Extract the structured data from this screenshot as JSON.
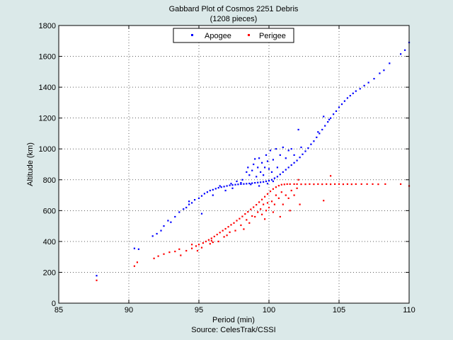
{
  "chart_data": {
    "type": "scatter",
    "title": "Gabbard Plot of Cosmos 2251 Debris",
    "subtitle": "(1208 pieces)",
    "xlabel": "Period (min)",
    "source": "Source: CelesTrak/CSSI",
    "ylabel": "Altitude (km)",
    "xlim": [
      85,
      110
    ],
    "ylim": [
      0,
      1800
    ],
    "xticks": [
      85,
      90,
      95,
      100,
      105,
      110
    ],
    "yticks": [
      0,
      200,
      400,
      600,
      800,
      1000,
      1200,
      1400,
      1600,
      1800
    ],
    "grid": true,
    "legend_position": "top-center",
    "series": [
      {
        "name": "Apogee",
        "color": "#0000ff",
        "points": [
          [
            87.7,
            178
          ],
          [
            90.4,
            355
          ],
          [
            90.7,
            350
          ],
          [
            91.7,
            435
          ],
          [
            92.0,
            450
          ],
          [
            92.3,
            470
          ],
          [
            92.5,
            500
          ],
          [
            92.8,
            535
          ],
          [
            93.0,
            525
          ],
          [
            93.3,
            560
          ],
          [
            93.6,
            590
          ],
          [
            93.9,
            610
          ],
          [
            94.1,
            620
          ],
          [
            94.3,
            640
          ],
          [
            94.5,
            650
          ],
          [
            94.3,
            660
          ],
          [
            94.7,
            670
          ],
          [
            95.0,
            680
          ],
          [
            95.2,
            695
          ],
          [
            95.4,
            710
          ],
          [
            95.6,
            720
          ],
          [
            95.8,
            730
          ],
          [
            96.0,
            735
          ],
          [
            96.2,
            742
          ],
          [
            96.4,
            748
          ],
          [
            96.6,
            752
          ],
          [
            96.8,
            756
          ],
          [
            97.0,
            760
          ],
          [
            97.2,
            764
          ],
          [
            97.4,
            766
          ],
          [
            97.6,
            768
          ],
          [
            97.8,
            770
          ],
          [
            98.0,
            772
          ],
          [
            98.2,
            773
          ],
          [
            98.4,
            774
          ],
          [
            98.6,
            776
          ],
          [
            98.8,
            778
          ],
          [
            99.0,
            780
          ],
          [
            99.2,
            782
          ],
          [
            99.4,
            784
          ],
          [
            99.6,
            786
          ],
          [
            99.8,
            790
          ],
          [
            100.0,
            795
          ],
          [
            100.2,
            800
          ],
          [
            100.4,
            810
          ],
          [
            100.6,
            820
          ],
          [
            100.8,
            835
          ],
          [
            101.0,
            850
          ],
          [
            101.2,
            865
          ],
          [
            101.4,
            880
          ],
          [
            101.6,
            895
          ],
          [
            101.8,
            910
          ],
          [
            102.0,
            925
          ],
          [
            102.2,
            945
          ],
          [
            102.4,
            965
          ],
          [
            102.6,
            985
          ],
          [
            102.8,
            1005
          ],
          [
            103.0,
            1030
          ],
          [
            103.2,
            1050
          ],
          [
            103.4,
            1075
          ],
          [
            103.6,
            1100
          ],
          [
            103.8,
            1125
          ],
          [
            104.0,
            1150
          ],
          [
            104.2,
            1175
          ],
          [
            104.4,
            1200
          ],
          [
            104.6,
            1225
          ],
          [
            104.8,
            1245
          ],
          [
            105.0,
            1270
          ],
          [
            105.2,
            1290
          ],
          [
            105.4,
            1310
          ],
          [
            105.6,
            1330
          ],
          [
            105.8,
            1345
          ],
          [
            106.0,
            1360
          ],
          [
            106.2,
            1375
          ],
          [
            106.5,
            1390
          ],
          [
            106.8,
            1410
          ],
          [
            107.1,
            1430
          ],
          [
            107.5,
            1455
          ],
          [
            107.9,
            1490
          ],
          [
            108.2,
            1510
          ],
          [
            108.6,
            1555
          ],
          [
            109.4,
            1615
          ],
          [
            109.7,
            1640
          ],
          [
            110.0,
            1690
          ],
          [
            95.2,
            580
          ],
          [
            96.0,
            700
          ],
          [
            96.9,
            730
          ],
          [
            97.4,
            745
          ],
          [
            97.7,
            790
          ],
          [
            98.1,
            800
          ],
          [
            98.4,
            850
          ],
          [
            98.5,
            880
          ],
          [
            98.6,
            830
          ],
          [
            98.8,
            860
          ],
          [
            98.9,
            900
          ],
          [
            99.0,
            935
          ],
          [
            99.1,
            820
          ],
          [
            99.2,
            880
          ],
          [
            99.3,
            940
          ],
          [
            99.4,
            850
          ],
          [
            99.5,
            910
          ],
          [
            99.6,
            830
          ],
          [
            99.7,
            880
          ],
          [
            99.8,
            960
          ],
          [
            99.9,
            920
          ],
          [
            100.0,
            870
          ],
          [
            100.1,
            990
          ],
          [
            100.2,
            850
          ],
          [
            100.3,
            930
          ],
          [
            100.5,
            1000
          ],
          [
            100.6,
            880
          ],
          [
            100.8,
            960
          ],
          [
            101.0,
            1010
          ],
          [
            101.2,
            940
          ],
          [
            101.4,
            990
          ],
          [
            101.6,
            1000
          ],
          [
            101.8,
            960
          ],
          [
            102.1,
            1125
          ],
          [
            103.9,
            1210
          ],
          [
            104.3,
            1190
          ],
          [
            103.5,
            1110
          ],
          [
            102.3,
            1010
          ],
          [
            99.3,
            760
          ],
          [
            99.9,
            775
          ],
          [
            100.3,
            790
          ],
          [
            98.7,
            770
          ],
          [
            98.0,
            780
          ],
          [
            97.3,
            775
          ],
          [
            96.5,
            760
          ]
        ]
      },
      {
        "name": "Perigee",
        "color": "#ff0000",
        "points": [
          [
            87.7,
            148
          ],
          [
            90.4,
            240
          ],
          [
            90.6,
            265
          ],
          [
            91.8,
            290
          ],
          [
            92.1,
            305
          ],
          [
            92.5,
            318
          ],
          [
            92.9,
            330
          ],
          [
            93.3,
            335
          ],
          [
            93.7,
            310
          ],
          [
            94.1,
            340
          ],
          [
            94.5,
            355
          ],
          [
            94.8,
            370
          ],
          [
            95.0,
            380
          ],
          [
            95.3,
            390
          ],
          [
            95.5,
            400
          ],
          [
            95.7,
            410
          ],
          [
            95.9,
            420
          ],
          [
            96.1,
            432
          ],
          [
            96.3,
            445
          ],
          [
            96.5,
            458
          ],
          [
            96.7,
            470
          ],
          [
            96.9,
            482
          ],
          [
            97.1,
            495
          ],
          [
            97.3,
            508
          ],
          [
            97.5,
            520
          ],
          [
            97.7,
            535
          ],
          [
            97.9,
            548
          ],
          [
            98.1,
            562
          ],
          [
            98.3,
            578
          ],
          [
            98.5,
            592
          ],
          [
            98.7,
            608
          ],
          [
            98.9,
            622
          ],
          [
            99.1,
            638
          ],
          [
            99.3,
            655
          ],
          [
            99.5,
            672
          ],
          [
            99.7,
            690
          ],
          [
            99.9,
            708
          ],
          [
            100.1,
            725
          ],
          [
            100.3,
            740
          ],
          [
            100.5,
            752
          ],
          [
            100.7,
            762
          ],
          [
            100.9,
            768
          ],
          [
            101.1,
            770
          ],
          [
            101.3,
            772
          ],
          [
            101.5,
            772
          ],
          [
            101.8,
            772
          ],
          [
            102.0,
            772
          ],
          [
            102.3,
            771
          ],
          [
            102.6,
            771
          ],
          [
            102.9,
            772
          ],
          [
            103.2,
            771
          ],
          [
            103.5,
            772
          ],
          [
            103.8,
            771
          ],
          [
            104.1,
            772
          ],
          [
            104.4,
            771
          ],
          [
            104.7,
            772
          ],
          [
            105.0,
            772
          ],
          [
            105.3,
            771
          ],
          [
            105.6,
            772
          ],
          [
            105.9,
            771
          ],
          [
            106.2,
            772
          ],
          [
            106.6,
            772
          ],
          [
            107.0,
            772
          ],
          [
            107.4,
            772
          ],
          [
            107.8,
            771
          ],
          [
            108.3,
            772
          ],
          [
            109.4,
            772
          ],
          [
            110.0,
            760
          ],
          [
            94.5,
            380
          ],
          [
            95.2,
            360
          ],
          [
            96.0,
            395
          ],
          [
            96.8,
            430
          ],
          [
            97.2,
            460
          ],
          [
            97.6,
            470
          ],
          [
            98.0,
            505
          ],
          [
            98.4,
            540
          ],
          [
            98.6,
            520
          ],
          [
            98.8,
            565
          ],
          [
            99.0,
            560
          ],
          [
            99.2,
            590
          ],
          [
            99.4,
            610
          ],
          [
            99.5,
            575
          ],
          [
            99.6,
            640
          ],
          [
            99.8,
            600
          ],
          [
            99.9,
            650
          ],
          [
            100.0,
            620
          ],
          [
            100.2,
            660
          ],
          [
            100.4,
            640
          ],
          [
            100.5,
            700
          ],
          [
            100.7,
            680
          ],
          [
            100.9,
            720
          ],
          [
            101.0,
            640
          ],
          [
            101.2,
            700
          ],
          [
            101.4,
            680
          ],
          [
            101.6,
            730
          ],
          [
            101.8,
            700
          ],
          [
            102.0,
            745
          ],
          [
            102.1,
            800
          ],
          [
            104.4,
            825
          ],
          [
            103.9,
            665
          ],
          [
            102.2,
            640
          ],
          [
            101.5,
            600
          ],
          [
            100.8,
            560
          ],
          [
            100.3,
            590
          ],
          [
            99.7,
            545
          ],
          [
            98.2,
            480
          ],
          [
            97.0,
            440
          ],
          [
            96.4,
            400
          ],
          [
            95.8,
            385
          ],
          [
            93.6,
            350
          ],
          [
            94.9,
            340
          ],
          [
            95.9,
            405
          ]
        ]
      }
    ]
  }
}
